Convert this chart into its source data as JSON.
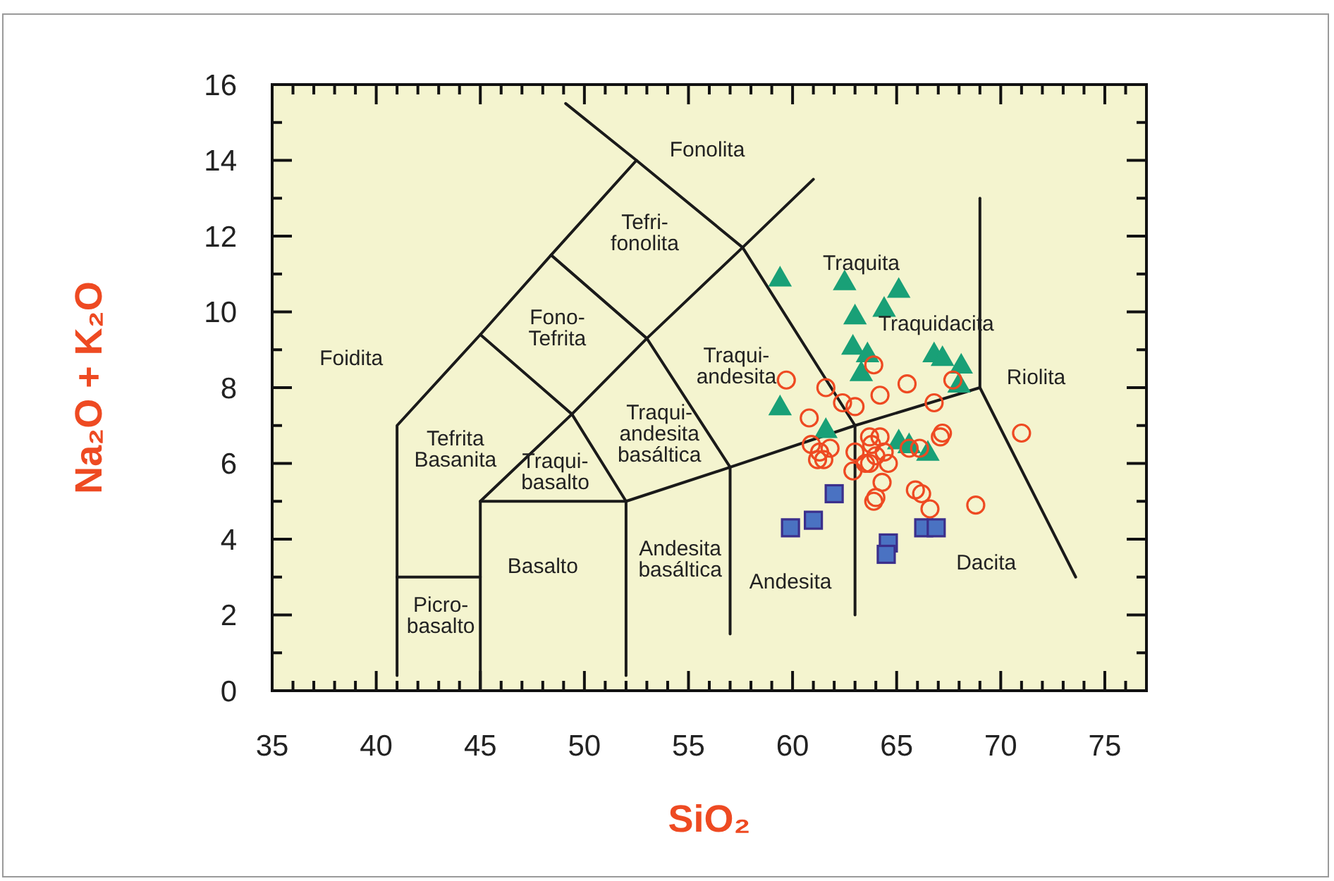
{
  "chart_data": {
    "type": "scatter",
    "xlabel": "SiO₂",
    "ylabel": "Na₂O + K₂O",
    "xlim": [
      35,
      77
    ],
    "ylim": [
      0,
      16
    ],
    "xticks": [
      35,
      {
        "value": 36,
        "label": null
      },
      {
        "value": 37,
        "label": null
      },
      {
        "value": 38,
        "label": null
      },
      {
        "value": 39,
        "label": null
      },
      40,
      {
        "value": 41,
        "label": null
      },
      {
        "value": 42,
        "label": null
      },
      {
        "value": 43,
        "label": null
      },
      {
        "value": 44,
        "label": null
      },
      45,
      {
        "value": 46,
        "label": null
      },
      {
        "value": 47,
        "label": null
      },
      {
        "value": 48,
        "label": null
      },
      {
        "value": 49,
        "label": null
      },
      50,
      {
        "value": 51,
        "label": null
      },
      {
        "value": 52,
        "label": null
      },
      {
        "value": 53,
        "label": null
      },
      {
        "value": 54,
        "label": null
      },
      55,
      {
        "value": 56,
        "label": null
      },
      {
        "value": 57,
        "label": null
      },
      {
        "value": 58,
        "label": null
      },
      {
        "value": 59,
        "label": null
      },
      60,
      {
        "value": 61,
        "label": null
      },
      {
        "value": 62,
        "label": null
      },
      {
        "value": 63,
        "label": null
      },
      {
        "value": 64,
        "label": null
      },
      65,
      {
        "value": 66,
        "label": null
      },
      {
        "value": 67,
        "label": null
      },
      {
        "value": 68,
        "label": null
      },
      {
        "value": 69,
        "label": null
      },
      70,
      {
        "value": 71,
        "label": null
      },
      {
        "value": 72,
        "label": null
      },
      {
        "value": 73,
        "label": null
      },
      {
        "value": 74,
        "label": null
      },
      75,
      {
        "value": 76,
        "label": null
      }
    ],
    "yticks": [
      0,
      {
        "value": 1,
        "label": null
      },
      2,
      {
        "value": 3,
        "label": null
      },
      4,
      {
        "value": 5,
        "label": null
      },
      6,
      {
        "value": 7,
        "label": null
      },
      8,
      {
        "value": 9,
        "label": null
      },
      10,
      {
        "value": 11,
        "label": null
      },
      12,
      {
        "value": 13,
        "label": null
      },
      14,
      {
        "value": 15,
        "label": null
      },
      16
    ],
    "grid": false,
    "series": [
      {
        "type": "line",
        "color": "#1a1a1a",
        "marker": "none",
        "x": [
          41,
          41,
          45,
          48.4,
          52.5,
          49.1
        ],
        "values": [
          0.4,
          7,
          9.4,
          11.5,
          14,
          15.5
        ]
      },
      {
        "type": "line",
        "color": "#1a1a1a",
        "marker": "none",
        "x": [
          41,
          45
        ],
        "values": [
          3,
          3
        ]
      },
      {
        "type": "line",
        "color": "#1a1a1a",
        "marker": "none",
        "x": [
          45,
          45,
          49.4,
          53,
          57.6,
          61
        ],
        "values": [
          0,
          5,
          7.3,
          9.3,
          11.7,
          13.5
        ]
      },
      {
        "type": "line",
        "color": "#1a1a1a",
        "marker": "none",
        "x": [
          45,
          52,
          57,
          63,
          69,
          73.6
        ],
        "values": [
          5,
          5,
          5.9,
          7,
          8,
          3
        ]
      },
      {
        "type": "line",
        "color": "#1a1a1a",
        "marker": "none",
        "x": [
          52,
          52
        ],
        "values": [
          0.4,
          5
        ]
      },
      {
        "type": "line",
        "color": "#1a1a1a",
        "marker": "none",
        "x": [
          57,
          57
        ],
        "values": [
          1.5,
          5.9
        ]
      },
      {
        "type": "line",
        "color": "#1a1a1a",
        "marker": "none",
        "x": [
          63,
          63
        ],
        "values": [
          2,
          7
        ]
      },
      {
        "type": "line",
        "color": "#1a1a1a",
        "marker": "none",
        "x": [
          69,
          69
        ],
        "values": [
          8,
          13
        ]
      },
      {
        "type": "line",
        "color": "#1a1a1a",
        "marker": "none",
        "x": [
          45,
          49.4,
          52
        ],
        "values": [
          9.4,
          7.3,
          5
        ]
      },
      {
        "type": "line",
        "color": "#1a1a1a",
        "marker": "none",
        "x": [
          48.4,
          53,
          57
        ],
        "values": [
          11.5,
          9.3,
          5.9
        ]
      },
      {
        "type": "line",
        "color": "#1a1a1a",
        "marker": "none",
        "x": [
          52.5,
          57.6,
          63
        ],
        "values": [
          14,
          11.7,
          7
        ]
      },
      {
        "color": "#19a077",
        "marker": "triangle",
        "x": [
          59.4,
          62.5,
          65.1,
          64.4,
          63.0,
          62.9,
          63.6,
          63.3,
          66.8,
          67.2,
          68.1,
          68.0,
          59.4,
          61.6,
          65.1,
          65.6,
          66.5
        ],
        "values": [
          10.9,
          10.8,
          10.6,
          10.1,
          9.9,
          9.1,
          8.9,
          8.4,
          8.9,
          8.8,
          8.6,
          8.1,
          7.5,
          6.9,
          6.6,
          6.5,
          6.3
        ]
      },
      {
        "color": "#4a72c2",
        "marker": "square",
        "x": [
          62.0,
          61.0,
          59.9,
          64.6,
          64.5,
          66.3,
          66.9
        ],
        "values": [
          5.2,
          4.5,
          4.3,
          3.9,
          3.6,
          4.3,
          4.3
        ]
      },
      {
        "color": "#ee4a22",
        "marker": "circle",
        "x": [
          64.0,
          63.7,
          64.4,
          64.6,
          63.8,
          59.7,
          61.6,
          63.9,
          65.5,
          64.2,
          62.4,
          63.0,
          66.8,
          60.8,
          67.7,
          67.2,
          67.1,
          71.0,
          60.9,
          61.3,
          61.5,
          61.2,
          61.8,
          63.7,
          64.2,
          63.0,
          62.9,
          63.5,
          65.6,
          66.1,
          64.3,
          64.0,
          63.9,
          65.9,
          66.2,
          66.6,
          68.8
        ],
        "values": [
          6.2,
          6.0,
          6.3,
          6.0,
          6.5,
          8.2,
          8.0,
          8.6,
          8.1,
          7.8,
          7.6,
          7.5,
          7.6,
          7.2,
          8.2,
          6.8,
          6.7,
          6.8,
          6.5,
          6.3,
          6.1,
          6.1,
          6.4,
          6.7,
          6.7,
          6.3,
          5.8,
          6.0,
          6.4,
          6.4,
          5.5,
          5.1,
          5.0,
          5.3,
          5.2,
          4.8,
          4.9
        ]
      }
    ],
    "annotations": [
      "Fonolita",
      "Tefri-\nfonolita",
      "Fono-\nTefrita",
      "Foidita",
      "Traqui-\nandesita",
      "Traquita",
      "Traquidacita",
      "Riolita",
      "Tefrita\nBasanita",
      "Traqui-\nandesita\nbasáltica",
      "Traqui-\nbasalto",
      "Basalto",
      "Picro-\nbasalto",
      "Andesita\nbasáltica",
      "Andesita",
      "Dacita"
    ]
  }
}
